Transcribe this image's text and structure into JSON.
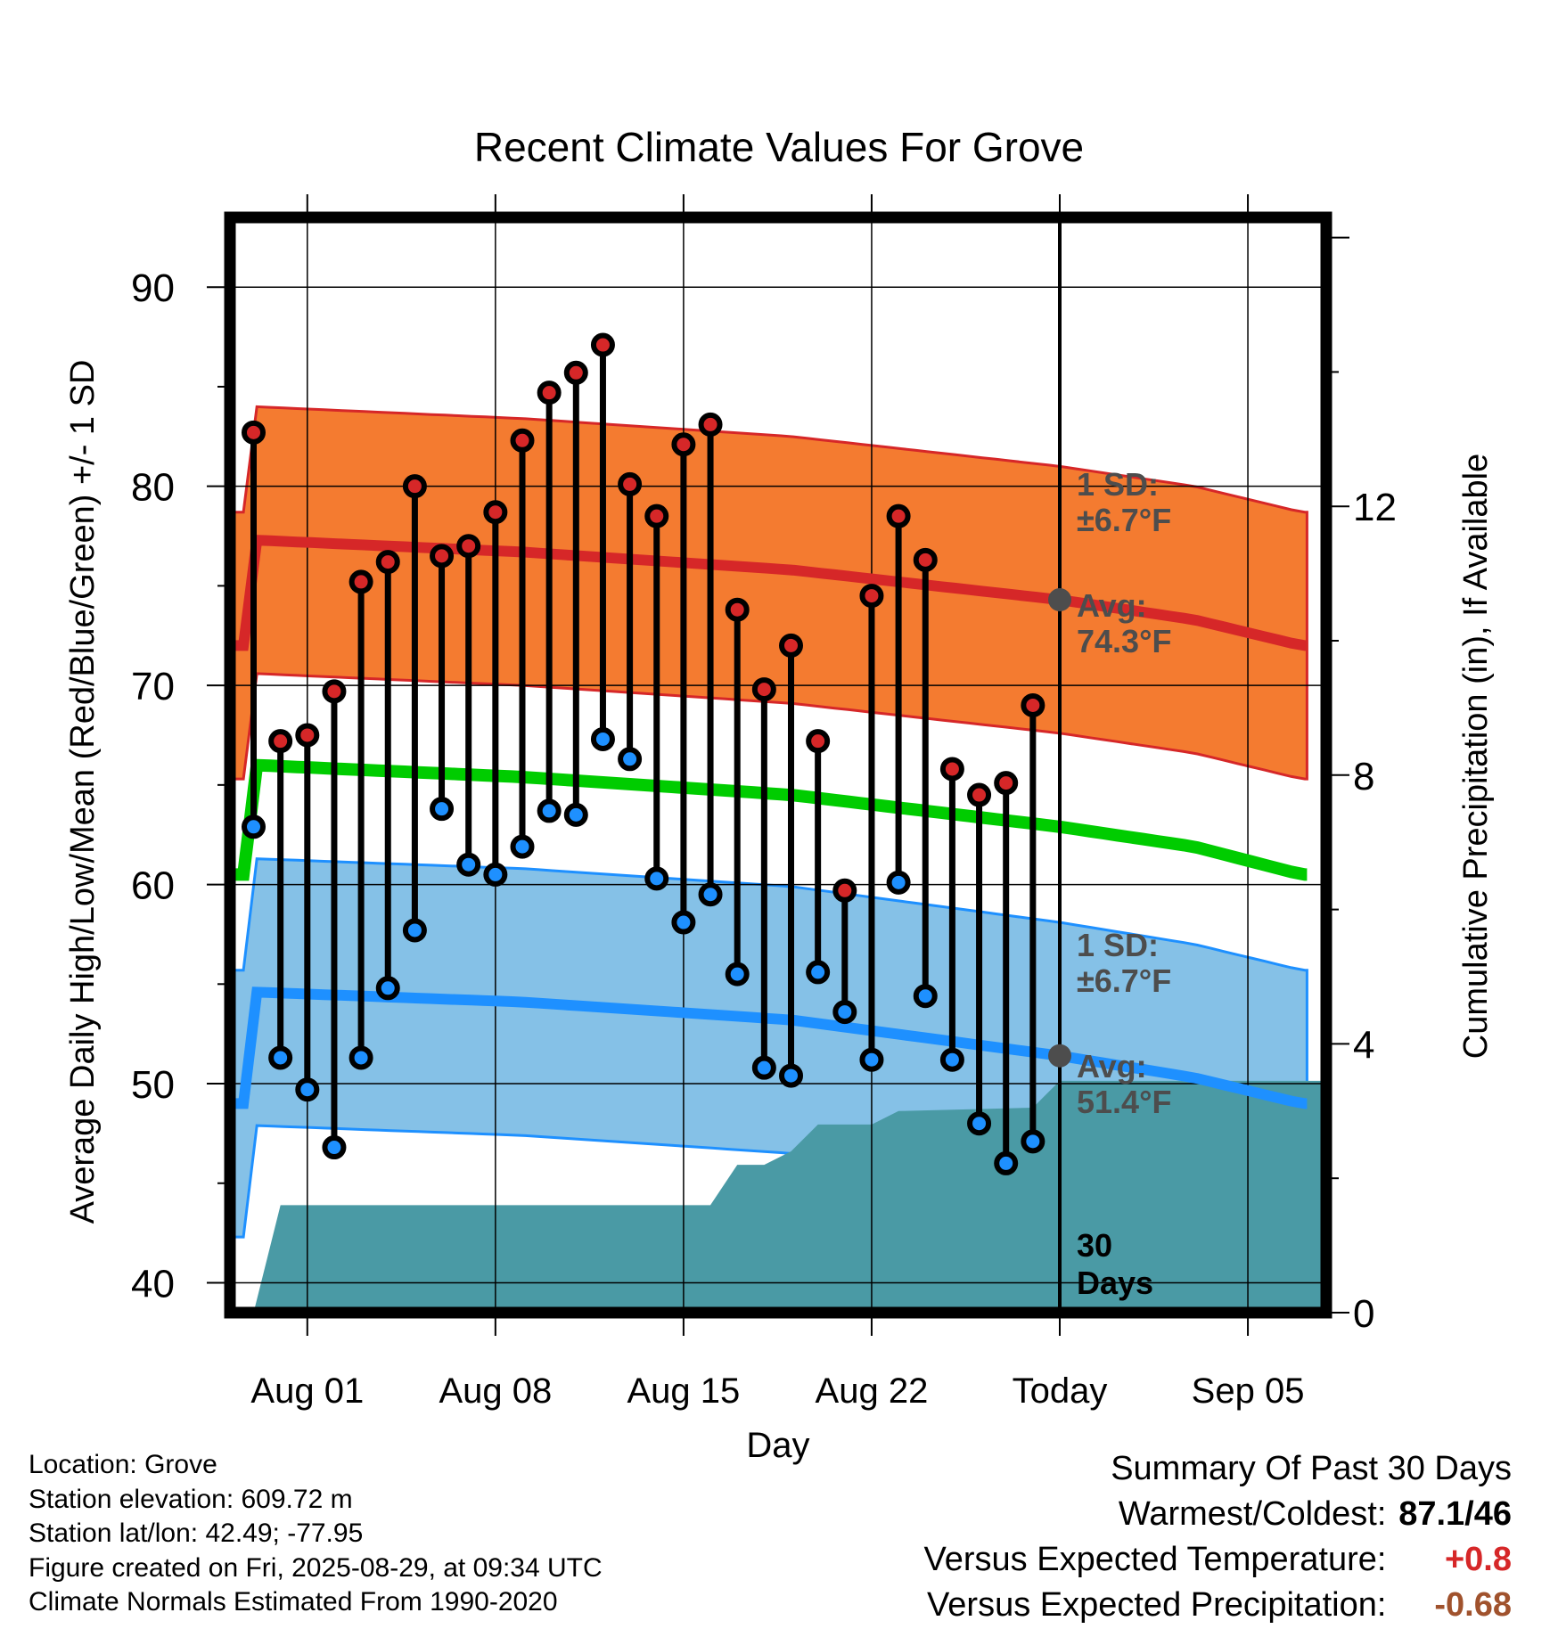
{
  "title": "Recent Climate Values For Grove",
  "axes": {
    "ylabel_left": "Average Daily High/Low/Mean (Red/Blue/Green) +/- 1 SD",
    "ylabel_right": "Cumulative Precipitation (in), If Available",
    "xlabel": "Day",
    "yticks_left": [
      "40",
      "50",
      "60",
      "70",
      "80",
      "90"
    ],
    "yticks_right": [
      "0",
      "4",
      "8",
      "12"
    ],
    "xticks": [
      "Aug 01",
      "Aug 08",
      "Aug 15",
      "Aug 22",
      "Today",
      "Sep 05"
    ]
  },
  "annotations": {
    "high_sd_line1": "1 SD:",
    "high_sd_line2": "±6.7°F",
    "high_avg_line1": "Avg:",
    "high_avg_line2": "74.3°F",
    "low_sd_line1": "1 SD:",
    "low_sd_line2": "±6.7°F",
    "low_avg_line1": "Avg:",
    "low_avg_line2": "51.4°F",
    "days_line1": "30",
    "days_line2": "Days"
  },
  "info": {
    "location": "Location: Grove",
    "elevation": "Station elevation: 609.72 m",
    "latlon": "Station lat/lon: 42.49; -77.95",
    "created": "Figure created on Fri, 2025-08-29, at 09:34 UTC",
    "normals": "Climate Normals Estimated From 1990-2020"
  },
  "summary": {
    "heading": "Summary Of Past 30 Days",
    "warmest_label": "Warmest/Coldest:",
    "warmest_value": "87.1/46",
    "temp_label": "Versus Expected Temperature:",
    "temp_value": "+0.8",
    "precip_label": "Versus Expected Precipitation:",
    "precip_value": "-0.68"
  },
  "colors": {
    "high_dot": "#d62728",
    "low_dot": "#1e90ff",
    "high_band": "#f47b30",
    "low_band": "#85c1e7",
    "normal_high_line": "#d62728",
    "normal_low_line": "#1e90ff",
    "normal_mean_line": "#00cc00",
    "precip_fill": "#4a9aa5",
    "annotation_text": "#4d4d4d",
    "temp_dev": "#d62728",
    "precip_dev": "#a0522d"
  },
  "chart_data": {
    "type": "line",
    "x_start_day_offset": -2,
    "y_left_range": [
      38.5,
      93.5
    ],
    "y_right_range": [
      0,
      16.3
    ],
    "grid": true,
    "dates": [
      "Jul 30",
      "Jul 31",
      "Aug 01",
      "Aug 02",
      "Aug 03",
      "Aug 04",
      "Aug 05",
      "Aug 06",
      "Aug 07",
      "Aug 08",
      "Aug 09",
      "Aug 10",
      "Aug 11",
      "Aug 12",
      "Aug 13",
      "Aug 14",
      "Aug 15",
      "Aug 16",
      "Aug 17",
      "Aug 18",
      "Aug 19",
      "Aug 20",
      "Aug 21",
      "Aug 22",
      "Aug 23",
      "Aug 24",
      "Aug 25",
      "Aug 26",
      "Aug 27",
      "Aug 28"
    ],
    "highs": [
      82.7,
      67.2,
      67.5,
      69.7,
      75.2,
      76.2,
      80.0,
      76.5,
      77.0,
      78.7,
      82.3,
      84.7,
      85.7,
      87.1,
      80.1,
      78.5,
      82.1,
      83.1,
      73.8,
      69.8,
      72.0,
      67.2,
      59.7,
      74.5,
      78.5,
      76.3,
      65.8,
      64.5,
      65.1,
      69.0
    ],
    "lows": [
      62.9,
      51.3,
      49.7,
      46.8,
      51.3,
      54.8,
      57.7,
      63.8,
      61.0,
      60.5,
      61.9,
      63.7,
      63.5,
      67.3,
      66.3,
      60.3,
      58.1,
      59.5,
      55.5,
      50.8,
      50.4,
      55.6,
      53.6,
      51.2,
      60.1,
      54.4,
      51.2,
      48.0,
      46.0,
      47.1
    ],
    "normal_high_series": [
      {
        "day": 0,
        "value": 77.3
      },
      {
        "day": 10,
        "value": 76.7
      },
      {
        "day": 20,
        "value": 75.8
      },
      {
        "day": 30,
        "value": 74.3
      },
      {
        "day": 35,
        "value": 73.3
      },
      {
        "day": 39,
        "value": 72.0
      }
    ],
    "normal_low_series": [
      {
        "day": 0,
        "value": 54.6
      },
      {
        "day": 10,
        "value": 54.1
      },
      {
        "day": 20,
        "value": 53.2
      },
      {
        "day": 30,
        "value": 51.4
      },
      {
        "day": 35,
        "value": 50.3
      },
      {
        "day": 39,
        "value": 49.0
      }
    ],
    "normal_mean_series": [
      {
        "day": 0,
        "value": 66.0
      },
      {
        "day": 10,
        "value": 65.4
      },
      {
        "day": 20,
        "value": 64.5
      },
      {
        "day": 30,
        "value": 62.9
      },
      {
        "day": 35,
        "value": 61.9
      },
      {
        "day": 39,
        "value": 60.5
      }
    ],
    "high_sd": 6.7,
    "low_sd": 6.7,
    "precip_cumulative": [
      {
        "day": 0.0,
        "value": 0.0
      },
      {
        "day": 1.0,
        "value": 1.6
      },
      {
        "day": 17.0,
        "value": 1.6
      },
      {
        "day": 18.0,
        "value": 2.2
      },
      {
        "day": 19.0,
        "value": 2.2
      },
      {
        "day": 20.0,
        "value": 2.4
      },
      {
        "day": 21.0,
        "value": 2.8
      },
      {
        "day": 23.0,
        "value": 2.8
      },
      {
        "day": 24.0,
        "value": 3.0
      },
      {
        "day": 29.0,
        "value": 3.05
      },
      {
        "day": 30.0,
        "value": 3.45
      },
      {
        "day": 40.0,
        "value": 3.45
      }
    ],
    "today_index": 30,
    "today_high_normal": 74.3,
    "today_low_normal": 51.4
  }
}
